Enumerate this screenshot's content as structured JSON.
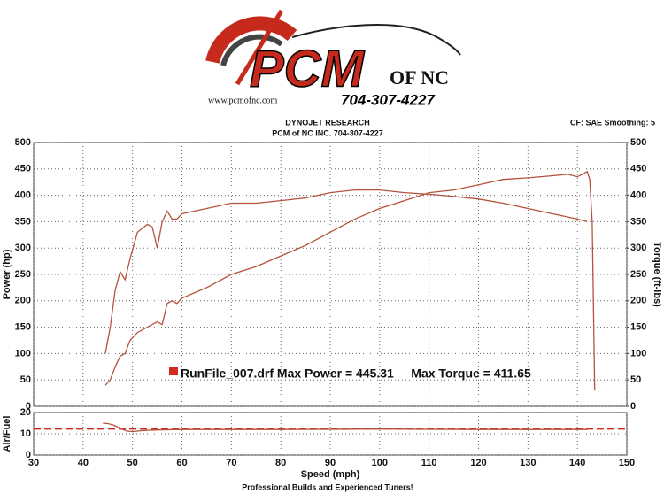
{
  "logo": {
    "name": "PCM",
    "suffix": "of NC",
    "phone": "704-307-4227",
    "url": "www.pcmofnc.com"
  },
  "header": {
    "title": "DYNOJET RESEARCH",
    "subtitle": "PCM of NC INC. 704-307-4227",
    "settings": "CF: SAE  Smoothing: 5"
  },
  "footer": "Professional Builds and Experienced Tuners!",
  "chart_data": [
    {
      "type": "line",
      "y_label": "Power (hp)",
      "y2_label": "Torque (ft-lbs)",
      "annotation": "RunFile_007.drf Max Power = 445.31     Max Torque = 411.65",
      "annotation_color": "#d42a1e",
      "xlim": [
        30,
        150
      ],
      "xticks": [
        30,
        40,
        50,
        60,
        70,
        80,
        90,
        100,
        110,
        120,
        130,
        140,
        150
      ],
      "ylim": [
        0,
        500
      ],
      "yticks": [
        0,
        50,
        100,
        150,
        200,
        250,
        300,
        350,
        400,
        450,
        500
      ],
      "y2lim": [
        0,
        500
      ],
      "y2ticks": [
        0,
        50,
        100,
        150,
        200,
        250,
        300,
        350,
        400,
        450,
        500
      ],
      "grid": true,
      "series": [
        {
          "color": "#b5523b",
          "x": [
            44.5,
            45.5,
            46.5,
            47.5,
            48.5,
            49.5,
            51,
            53,
            55,
            56,
            57,
            58,
            59,
            60,
            65,
            70,
            75,
            80,
            85,
            90,
            95,
            100,
            105,
            110,
            115,
            120,
            125,
            130,
            135,
            138,
            140,
            141,
            142,
            142.5,
            143,
            143.5
          ],
          "values": [
            40,
            50,
            75,
            95,
            100,
            125,
            140,
            150,
            160,
            155,
            195,
            200,
            195,
            205,
            225,
            250,
            265,
            285,
            305,
            330,
            355,
            375,
            390,
            405,
            410,
            420,
            430,
            433,
            437,
            440,
            435,
            440,
            445,
            430,
            350,
            30
          ]
        },
        {
          "color": "#b5523b",
          "axis": "y2",
          "x": [
            44.5,
            45.5,
            46.5,
            47.5,
            48.5,
            49.5,
            51,
            53,
            54,
            55,
            56,
            57,
            58,
            59,
            60,
            65,
            70,
            75,
            80,
            85,
            90,
            95,
            100,
            105,
            110,
            115,
            120,
            125,
            130,
            135,
            140,
            142
          ],
          "values": [
            100,
            150,
            220,
            255,
            240,
            280,
            330,
            345,
            340,
            300,
            350,
            370,
            355,
            355,
            365,
            375,
            385,
            385,
            390,
            395,
            405,
            410,
            410,
            405,
            402,
            398,
            393,
            385,
            375,
            365,
            355,
            350
          ]
        }
      ]
    },
    {
      "type": "line",
      "y_label": "Air/Fuel",
      "x_label": "Speed (mph)",
      "xlim": [
        30,
        150
      ],
      "xticks": [
        30,
        40,
        50,
        60,
        70,
        80,
        90,
        100,
        110,
        120,
        130,
        140,
        150
      ],
      "ylim": [
        0,
        20
      ],
      "yticks": [
        0,
        10,
        20
      ],
      "grid": true,
      "series": [
        {
          "color": "#d42a1e",
          "dashed": true,
          "x": [
            30,
            150
          ],
          "values": [
            12.2,
            12.2
          ]
        },
        {
          "color": "#b5523b",
          "x": [
            44,
            45,
            46,
            47,
            48,
            49,
            50,
            52,
            55,
            60,
            70,
            80,
            90,
            100,
            110,
            120,
            130,
            140,
            142
          ],
          "values": [
            15,
            14.8,
            14.2,
            13.2,
            12,
            11.2,
            11,
            11.5,
            11.8,
            12,
            12,
            12,
            12.1,
            12.2,
            12.1,
            12,
            12,
            12,
            12
          ]
        }
      ]
    }
  ]
}
